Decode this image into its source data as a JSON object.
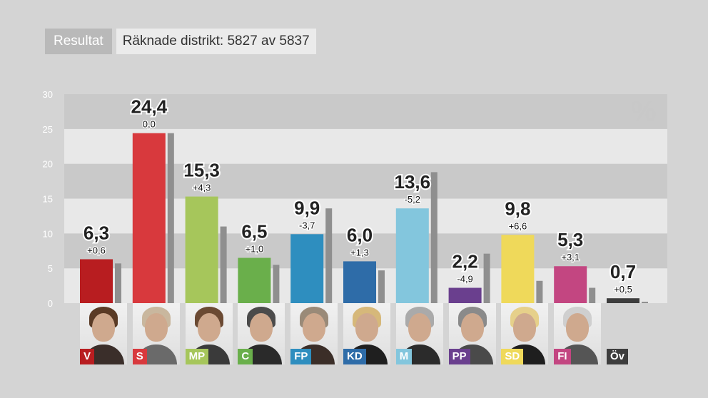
{
  "header": {
    "tab_label": "Resultat",
    "district_text": "Räknade distrikt: 5827 av 5837"
  },
  "unit_symbol": "%",
  "chart_data": {
    "type": "bar",
    "categories": [
      "V",
      "S",
      "MP",
      "C",
      "FP",
      "KD",
      "M",
      "PP",
      "SD",
      "FI",
      "Öv"
    ],
    "value_labels": [
      "6,3",
      "24,4",
      "15,3",
      "6,5",
      "9,9",
      "6,0",
      "13,6",
      "2,2",
      "9,8",
      "5,3",
      "0,7"
    ],
    "change_labels": [
      "+0,6",
      "0,0",
      "+4,3",
      "+1,0",
      "-3,7",
      "+1,3",
      "-5,2",
      "-4,9",
      "+6,6",
      "+3,1",
      "+0,5"
    ],
    "series": [
      {
        "values": [
          6.3,
          24.4,
          15.3,
          6.5,
          9.9,
          6.0,
          13.6,
          2.2,
          9.8,
          5.3,
          0.7
        ]
      },
      {
        "values": [
          5.7,
          24.4,
          11.0,
          5.5,
          13.6,
          4.7,
          18.8,
          7.1,
          3.2,
          2.2,
          0.2
        ]
      }
    ],
    "colors": [
      "#b81d20",
      "#d8393d",
      "#a6c65b",
      "#6aaf4b",
      "#2e8ebf",
      "#2e6ca8",
      "#83c6dd",
      "#6a3f8e",
      "#efd95a",
      "#c34681",
      "#3d3d3d"
    ],
    "ylim": [
      0,
      30
    ],
    "yticks": [
      0,
      5,
      10,
      15,
      20,
      25,
      30
    ]
  }
}
